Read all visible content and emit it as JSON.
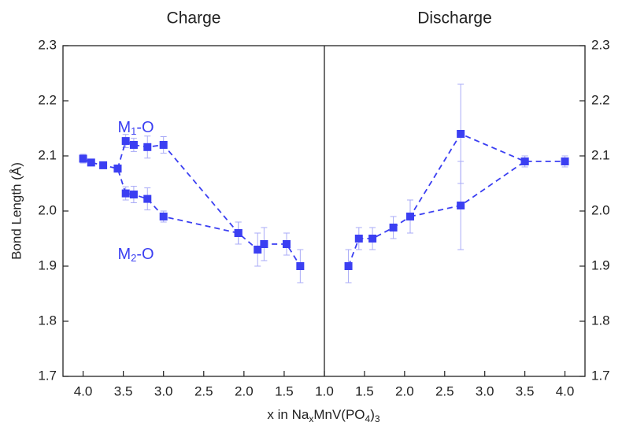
{
  "x_label": {
    "parts": [
      "x in Na",
      "x",
      "MnV(PO",
      "4",
      ")",
      "3"
    ]
  },
  "y_label": "Bond Length (Å)",
  "chart_data": [
    {
      "type": "line",
      "title": "Charge",
      "color": "#3b3ff2",
      "error_color": "#a9abf7",
      "xlim": [
        4.25,
        1.0
      ],
      "ylim": [
        1.7,
        2.3
      ],
      "xticks": [
        {
          "value": 4,
          "label": "4.0"
        },
        3.5,
        {
          "value": 3,
          "label": "3.0"
        },
        2.5,
        {
          "value": 2,
          "label": "2.0"
        },
        1.5,
        {
          "value": 1,
          "label": "1.0"
        }
      ],
      "yticks": [
        1.7,
        1.8,
        1.9,
        {
          "value": 2,
          "label": "2.0"
        },
        2.1,
        2.2,
        2.3
      ],
      "series": [
        {
          "x": [
            4.0,
            3.9,
            3.75,
            3.57,
            3.47,
            3.37,
            3.2,
            3.0,
            2.07,
            1.83,
            1.75,
            1.47,
            1.3
          ],
          "values": [
            2.095,
            2.088,
            2.083,
            2.077,
            2.032,
            2.03,
            2.022,
            1.99,
            1.96,
            1.93,
            1.94,
            1.94,
            1.9
          ],
          "errors": [
            0.008,
            0.004,
            0.004,
            0.004,
            0.012,
            0.015,
            0.02,
            0.01,
            0.02,
            0.03,
            0.03,
            0.02,
            0.03
          ]
        },
        {
          "x": [
            3.57,
            3.47,
            3.37,
            3.2,
            3.0,
            2.07
          ],
          "values": [
            2.077,
            2.127,
            2.12,
            2.116,
            2.12,
            1.96
          ],
          "errors": [
            0.004,
            0.012,
            0.012,
            0.02,
            0.015,
            0.02
          ]
        }
      ],
      "annotations": [
        {
          "main": "M",
          "sub": "1",
          "tail": "-O",
          "x": 3.57,
          "y": 2.15
        },
        {
          "main": "M",
          "sub": "2",
          "tail": "-O",
          "x": 3.57,
          "y": 1.92
        }
      ]
    },
    {
      "type": "line",
      "title": "Discharge",
      "color": "#3b3ff2",
      "error_color": "#a9abf7",
      "xlim": [
        1.0,
        4.25
      ],
      "ylim": [
        1.7,
        2.3
      ],
      "xticks": [
        1.5,
        {
          "value": 2,
          "label": "2.0"
        },
        2.5,
        {
          "value": 3,
          "label": "3.0"
        },
        3.5,
        {
          "value": 4,
          "label": "4.0"
        }
      ],
      "yticks": [
        1.7,
        1.8,
        1.9,
        {
          "value": 2,
          "label": "2.0"
        },
        2.1,
        2.2,
        2.3
      ],
      "series": [
        {
          "x": [
            1.3,
            1.43,
            1.6,
            1.86,
            2.07,
            2.7,
            3.5,
            4.0
          ],
          "values": [
            1.9,
            1.95,
            1.95,
            1.97,
            1.99,
            2.14,
            2.09,
            2.09
          ],
          "errors": [
            0.03,
            0.02,
            0.02,
            0.02,
            0.03,
            0.09,
            0.01,
            0.01
          ]
        },
        {
          "x": [
            2.07,
            2.7,
            3.5
          ],
          "values": [
            1.99,
            2.01,
            2.09
          ],
          "errors": [
            0.03,
            0.08,
            0.01
          ]
        }
      ]
    }
  ]
}
